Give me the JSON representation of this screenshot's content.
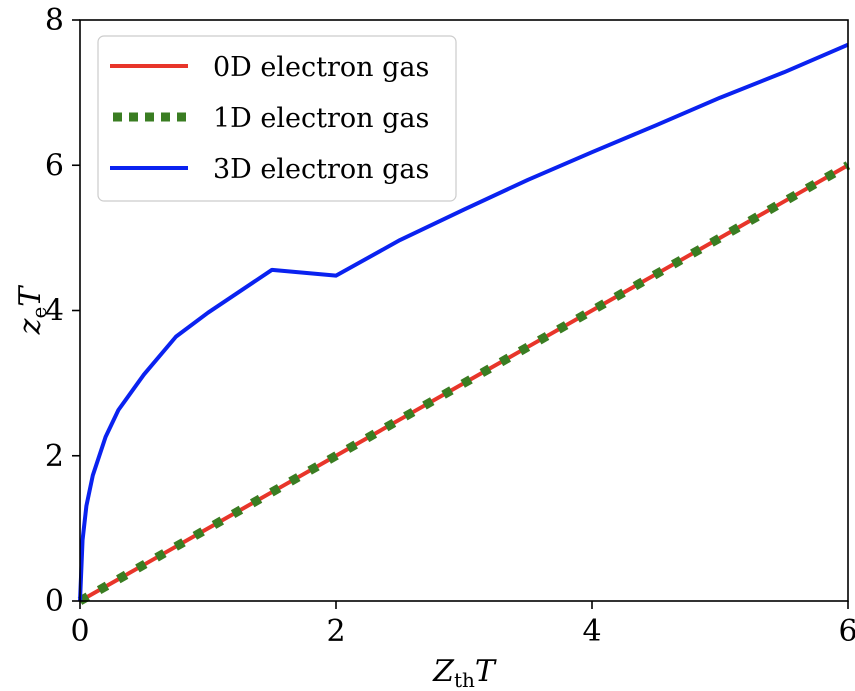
{
  "chart_data": {
    "type": "line",
    "xlabel": {
      "main": "Z",
      "sub": "th",
      "suffix": "T"
    },
    "ylabel": {
      "main": "z",
      "sub": "e",
      "suffix": "T"
    },
    "xlim": [
      0,
      6
    ],
    "ylim": [
      0,
      8
    ],
    "xticks": [
      "0",
      "2",
      "4",
      "6"
    ],
    "yticks": [
      "0",
      "2",
      "4",
      "6",
      "8"
    ],
    "grid": false,
    "legend_position": "top-left",
    "series": [
      {
        "name": "0D electron gas",
        "color": "#e8352a",
        "style": "solid",
        "x": [
          0,
          0.5,
          1,
          1.5,
          2,
          2.5,
          3,
          3.5,
          4,
          4.5,
          5,
          5.5,
          6
        ],
        "y": [
          0,
          0.5,
          1,
          1.5,
          2,
          2.5,
          3,
          3.5,
          4,
          4.5,
          5,
          5.5,
          6
        ]
      },
      {
        "name": "1D electron gas",
        "color": "#3a7d22",
        "style": "dotted",
        "x": [
          0,
          0.5,
          1,
          1.5,
          2,
          2.5,
          3,
          3.5,
          4,
          4.5,
          5,
          5.5,
          6
        ],
        "y": [
          0,
          0.5,
          1,
          1.5,
          2,
          2.5,
          3,
          3.5,
          4,
          4.5,
          5,
          5.5,
          6
        ]
      },
      {
        "name": "3D electron gas",
        "color": "#0a22f0",
        "style": "solid",
        "x": [
          0,
          0.02,
          0.05,
          0.1,
          0.2,
          0.3,
          0.5,
          0.75,
          1,
          1.5,
          2,
          2.5,
          3,
          3.5,
          4,
          4.5,
          5,
          5.5,
          6
        ],
        "y": [
          0,
          0.84,
          1.31,
          1.73,
          2.26,
          2.63,
          3.12,
          3.64,
          3.97,
          4.56,
          4.48,
          4.97,
          5.39,
          5.8,
          6.18,
          6.55,
          6.93,
          7.28,
          7.66
        ]
      }
    ]
  }
}
